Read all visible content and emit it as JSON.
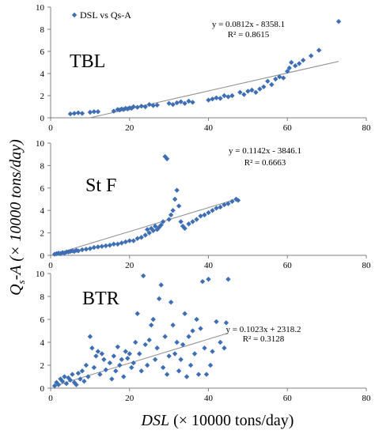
{
  "figure": {
    "ylabel_main": "Q",
    "ylabel_sub": "s",
    "ylabel_rest": "-A (× 10000 tons/day)",
    "xlabel_main": "DSL",
    "xlabel_rest": " (× 10000 tons/day)",
    "legend_label": "DSL vs Qs-A",
    "marker_color": "#3E6EB4",
    "trend_color": "#8C8C8C"
  },
  "chart_data": [
    {
      "type": "scatter",
      "panel_label": "TBL",
      "xlim": [
        0,
        80
      ],
      "ylim": [
        0,
        10
      ],
      "x_ticks": [
        0,
        20,
        40,
        60,
        80
      ],
      "y_ticks": [
        0,
        2,
        4,
        6,
        8,
        10
      ],
      "grid": false,
      "legend": "top-left",
      "trendline": {
        "equation": "y = 0.0812x - 8358.1",
        "r2": "R² = 0.8615",
        "x_start": 10,
        "y_start": 0,
        "x_end": 73,
        "y_end": 5.1
      },
      "points": [
        [
          5,
          0.35
        ],
        [
          6,
          0.4
        ],
        [
          7,
          0.45
        ],
        [
          8,
          0.4
        ],
        [
          10,
          0.5
        ],
        [
          11,
          0.55
        ],
        [
          12,
          0.55
        ],
        [
          16,
          0.6
        ],
        [
          17,
          0.75
        ],
        [
          17.5,
          0.7
        ],
        [
          18,
          0.8
        ],
        [
          18.5,
          0.75
        ],
        [
          19,
          0.85
        ],
        [
          19.5,
          0.8
        ],
        [
          20,
          0.9
        ],
        [
          20.5,
          0.85
        ],
        [
          21,
          1.0
        ],
        [
          22,
          0.95
        ],
        [
          23,
          1.05
        ],
        [
          24,
          1.0
        ],
        [
          25,
          1.2
        ],
        [
          26,
          1.1
        ],
        [
          27,
          1.15
        ],
        [
          30,
          1.3
        ],
        [
          31,
          1.2
        ],
        [
          32,
          1.35
        ],
        [
          33,
          1.45
        ],
        [
          34,
          1.3
        ],
        [
          35,
          1.5
        ],
        [
          36,
          1.4
        ],
        [
          40,
          1.6
        ],
        [
          41,
          1.7
        ],
        [
          42,
          1.8
        ],
        [
          43,
          1.75
        ],
        [
          44,
          2.0
        ],
        [
          45,
          1.9
        ],
        [
          46,
          2.0
        ],
        [
          48,
          2.3
        ],
        [
          49,
          2.1
        ],
        [
          50,
          2.4
        ],
        [
          51,
          2.5
        ],
        [
          52,
          2.3
        ],
        [
          53,
          2.6
        ],
        [
          54,
          2.8
        ],
        [
          55,
          3.3
        ],
        [
          56,
          3.0
        ],
        [
          57,
          3.5
        ],
        [
          58,
          3.7
        ],
        [
          59,
          3.6
        ],
        [
          60,
          4.2
        ],
        [
          60.5,
          4.5
        ],
        [
          61,
          5.0
        ],
        [
          62,
          4.7
        ],
        [
          63,
          4.9
        ],
        [
          64,
          5.2
        ],
        [
          66,
          5.6
        ],
        [
          68,
          6.1
        ],
        [
          73,
          8.7
        ]
      ]
    },
    {
      "type": "scatter",
      "panel_label": "St F",
      "xlim": [
        0,
        80
      ],
      "ylim": [
        0,
        10
      ],
      "x_ticks": [
        0,
        20,
        40,
        60,
        80
      ],
      "y_ticks": [
        0,
        2,
        4,
        6,
        8,
        10
      ],
      "grid": false,
      "trendline": {
        "equation": "y = 0.1142x - 3846.1",
        "r2": "R² = 0.6663",
        "x_start": 1,
        "y_start": 0.1,
        "x_end": 47,
        "y_end": 5.0
      },
      "points": [
        [
          1,
          0.1
        ],
        [
          1.5,
          0.15
        ],
        [
          2,
          0.2
        ],
        [
          2.5,
          0.15
        ],
        [
          3,
          0.25
        ],
        [
          3.5,
          0.2
        ],
        [
          4,
          0.3
        ],
        [
          4.5,
          0.3
        ],
        [
          5,
          0.35
        ],
        [
          5.5,
          0.4
        ],
        [
          6,
          0.35
        ],
        [
          6.5,
          0.45
        ],
        [
          7,
          0.4
        ],
        [
          8,
          0.5
        ],
        [
          9,
          0.55
        ],
        [
          10,
          0.6
        ],
        [
          11,
          0.7
        ],
        [
          12,
          0.75
        ],
        [
          13,
          0.8
        ],
        [
          14,
          0.85
        ],
        [
          15,
          0.9
        ],
        [
          16,
          1.0
        ],
        [
          17,
          1.0
        ],
        [
          18,
          1.1
        ],
        [
          19,
          1.2
        ],
        [
          20,
          1.3
        ],
        [
          21,
          1.3
        ],
        [
          22,
          1.5
        ],
        [
          23,
          1.6
        ],
        [
          24,
          1.8
        ],
        [
          24.5,
          2.3
        ],
        [
          25,
          2.0
        ],
        [
          25.5,
          2.4
        ],
        [
          26,
          2.2
        ],
        [
          26.5,
          2.6
        ],
        [
          27,
          2.3
        ],
        [
          27.5,
          2.5
        ],
        [
          28,
          2.7
        ],
        [
          28.5,
          3.0
        ],
        [
          29,
          8.8
        ],
        [
          29.5,
          8.6
        ],
        [
          30,
          3.2
        ],
        [
          30.5,
          3.6
        ],
        [
          31,
          4.0
        ],
        [
          31.5,
          5.0
        ],
        [
          32,
          5.8
        ],
        [
          32.5,
          4.4
        ],
        [
          33,
          3.0
        ],
        [
          33.5,
          2.6
        ],
        [
          34,
          2.4
        ],
        [
          35,
          2.8
        ],
        [
          36,
          3.0
        ],
        [
          37,
          3.2
        ],
        [
          38,
          3.5
        ],
        [
          39,
          3.6
        ],
        [
          40,
          3.8
        ],
        [
          41,
          4.0
        ],
        [
          42,
          4.2
        ],
        [
          43,
          4.3
        ],
        [
          44,
          4.5
        ],
        [
          45,
          4.6
        ],
        [
          46,
          4.8
        ],
        [
          47,
          5.0
        ],
        [
          47.5,
          4.9
        ]
      ]
    },
    {
      "type": "scatter",
      "panel_label": "BTR",
      "xlim": [
        0,
        80
      ],
      "ylim": [
        0,
        10
      ],
      "x_ticks": [
        0,
        20,
        40,
        60,
        80
      ],
      "y_ticks": [
        0,
        2,
        4,
        6,
        8,
        10
      ],
      "grid": false,
      "trendline": {
        "equation": "y = 0.1023x + 2318.2",
        "r2": "R² = 0.3128",
        "x_start": 1,
        "y_start": 0.2,
        "x_end": 45,
        "y_end": 4.8
      },
      "points": [
        [
          1,
          0.2
        ],
        [
          1.5,
          0.5
        ],
        [
          2,
          0.3
        ],
        [
          2.5,
          0.8
        ],
        [
          3,
          0.6
        ],
        [
          3.5,
          1.0
        ],
        [
          4,
          0.4
        ],
        [
          4.5,
          0.9
        ],
        [
          5,
          0.7
        ],
        [
          5.5,
          1.2
        ],
        [
          6,
          0.5
        ],
        [
          6.5,
          0.3
        ],
        [
          7,
          1.3
        ],
        [
          7.5,
          0.8
        ],
        [
          8,
          1.5
        ],
        [
          8.5,
          0.6
        ],
        [
          9,
          2.0
        ],
        [
          9.5,
          1.0
        ],
        [
          10,
          4.5
        ],
        [
          10.5,
          3.5
        ],
        [
          11,
          1.8
        ],
        [
          11.5,
          2.8
        ],
        [
          12,
          3.2
        ],
        [
          12.5,
          1.2
        ],
        [
          13,
          3.0
        ],
        [
          13.5,
          2.5
        ],
        [
          14,
          1.6
        ],
        [
          15,
          2.2
        ],
        [
          15.5,
          0.8
        ],
        [
          16,
          2.8
        ],
        [
          16.5,
          1.5
        ],
        [
          17,
          3.6
        ],
        [
          17.5,
          2.0
        ],
        [
          18,
          2.5
        ],
        [
          18.5,
          1.0
        ],
        [
          19,
          3.2
        ],
        [
          19.5,
          2.6
        ],
        [
          20,
          3.0
        ],
        [
          20.5,
          1.8
        ],
        [
          21,
          2.2
        ],
        [
          21.5,
          4.0
        ],
        [
          22,
          6.5
        ],
        [
          22.5,
          3.0
        ],
        [
          23,
          1.5
        ],
        [
          23.5,
          9.8
        ],
        [
          24,
          3.8
        ],
        [
          24.5,
          2.0
        ],
        [
          25,
          4.2
        ],
        [
          25.5,
          5.5
        ],
        [
          26,
          6.0
        ],
        [
          26.5,
          2.5
        ],
        [
          27,
          3.5
        ],
        [
          27.5,
          7.8
        ],
        [
          28,
          9.0
        ],
        [
          28.5,
          1.8
        ],
        [
          29,
          4.5
        ],
        [
          29.5,
          1.2
        ],
        [
          30,
          2.8
        ],
        [
          30.5,
          7.5
        ],
        [
          31,
          5.5
        ],
        [
          31.5,
          3.0
        ],
        [
          32,
          4.0
        ],
        [
          32.5,
          1.5
        ],
        [
          33,
          2.5
        ],
        [
          33.5,
          3.8
        ],
        [
          34,
          6.5
        ],
        [
          34.5,
          1.0
        ],
        [
          35,
          4.5
        ],
        [
          35.5,
          2.0
        ],
        [
          36,
          5.0
        ],
        [
          36.5,
          3.0
        ],
        [
          37,
          6.0
        ],
        [
          37.5,
          1.2
        ],
        [
          38,
          5.2
        ],
        [
          38.5,
          9.3
        ],
        [
          39,
          3.5
        ],
        [
          39.5,
          1.2
        ],
        [
          40,
          9.5
        ],
        [
          40.5,
          2.0
        ],
        [
          41,
          3.2
        ],
        [
          42,
          5.8
        ],
        [
          43,
          4.0
        ],
        [
          44,
          3.5
        ],
        [
          44.5,
          5.7
        ],
        [
          45,
          9.5
        ]
      ]
    }
  ]
}
